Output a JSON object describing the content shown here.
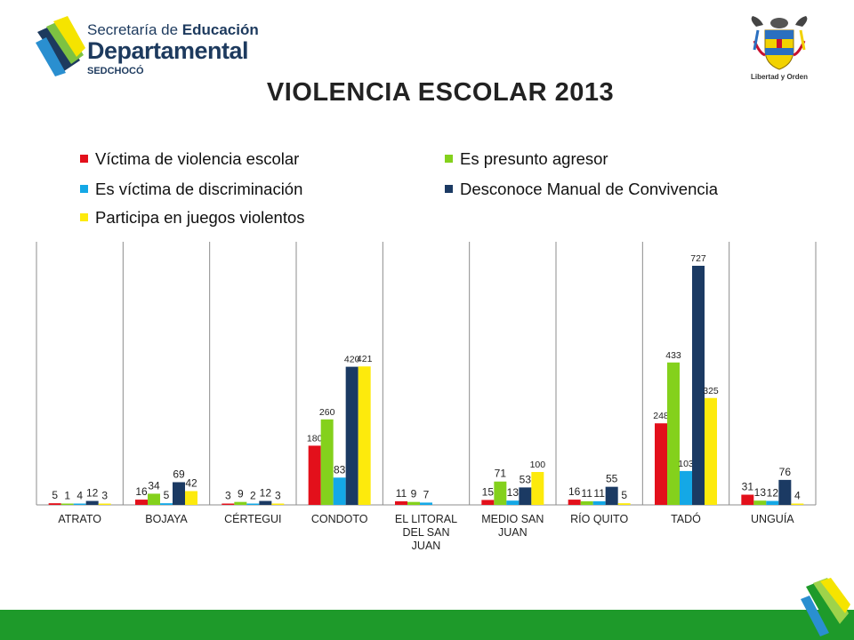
{
  "logo": {
    "line1_a": "Secretaría de ",
    "line1_b": "Educación",
    "line2": "Departamental",
    "line3": "SEDCHOCÓ"
  },
  "crest": {
    "motto": "Libertad y Orden",
    "name": "coat-of-arms"
  },
  "title": "VIOLENCIA ESCOLAR 2013",
  "colors": {
    "red": "#e3101b",
    "green": "#84d11c",
    "cyan": "#14a8e6",
    "navy": "#1b3a63",
    "yellow": "#fdea0c",
    "footer": "#1e9a2a"
  },
  "chart_data": {
    "type": "bar",
    "title": "VIOLENCIA ESCOLAR 2013",
    "xlabel": "",
    "ylabel": "",
    "ylim": [
      0,
      800
    ],
    "grid": false,
    "legend_position": "top",
    "categories": [
      "ATRATO",
      "BOJAYA",
      "CÉRTEGUI",
      "CONDOTO",
      "EL LITORAL DEL SAN JUAN",
      "MEDIO SAN JUAN",
      "RÍO QUITO",
      "TADÓ",
      "UNGUÍA"
    ],
    "series": [
      {
        "name": "Víctima de violencia escolar",
        "color": "#e3101b",
        "values": [
          5,
          16,
          3,
          180,
          11,
          15,
          16,
          248,
          31
        ]
      },
      {
        "name": "Es presunto agresor",
        "color": "#84d11c",
        "values": [
          1,
          34,
          9,
          260,
          9,
          71,
          11,
          433,
          13
        ]
      },
      {
        "name": "Es víctima de discriminación",
        "color": "#14a8e6",
        "values": [
          4,
          5,
          2,
          83,
          7,
          13,
          11,
          103,
          12
        ]
      },
      {
        "name": "Desconoce Manual de Convivencia",
        "color": "#1b3a63",
        "values": [
          12,
          69,
          12,
          420,
          null,
          53,
          55,
          727,
          76
        ]
      },
      {
        "name": "Participa en juegos violentos",
        "color": "#fdea0c",
        "values": [
          3,
          42,
          3,
          421,
          null,
          100,
          5,
          325,
          4
        ]
      }
    ]
  }
}
